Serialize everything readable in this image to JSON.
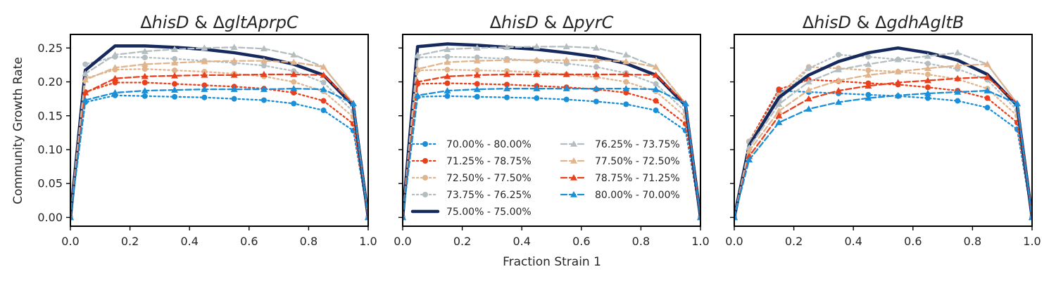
{
  "figure": {
    "ylabel": "Community Growth Rate",
    "xlabel": "Fraction Strain 1"
  },
  "chart_data": [
    {
      "type": "line",
      "title": "ΔhisD & ΔgltAprpC",
      "title_parts": [
        {
          "text": "Δ",
          "italic": false
        },
        {
          "text": "hisD",
          "italic": true
        },
        {
          "text": " & Δ",
          "italic": false
        },
        {
          "text": "gltAprpC",
          "italic": true
        }
      ],
      "xlim": [
        0,
        1
      ],
      "ylim": [
        -0.013,
        0.27
      ],
      "x": [
        0,
        0.05,
        0.15,
        0.25,
        0.35,
        0.45,
        0.55,
        0.65,
        0.75,
        0.85,
        0.95,
        1.0
      ],
      "series": [
        {
          "name": "70.00% - 80.00%",
          "color": "#1a8fd8",
          "dash": "dot",
          "marker": "circle",
          "values": [
            0,
            0.17,
            0.18,
            0.179,
            0.178,
            0.177,
            0.175,
            0.173,
            0.168,
            0.158,
            0.128,
            0
          ]
        },
        {
          "name": "71.25% - 78.75%",
          "color": "#e8401c",
          "dash": "dot",
          "marker": "circle",
          "values": [
            0,
            0.185,
            0.199,
            0.199,
            0.197,
            0.195,
            0.193,
            0.19,
            0.184,
            0.172,
            0.138,
            0
          ]
        },
        {
          "name": "72.50% - 77.50%",
          "color": "#e0b48c",
          "dash": "dot",
          "marker": "circle",
          "values": [
            0,
            0.205,
            0.218,
            0.219,
            0.217,
            0.215,
            0.212,
            0.208,
            0.2,
            0.186,
            0.148,
            0
          ]
        },
        {
          "name": "73.75% - 76.25%",
          "color": "#b4bec1",
          "dash": "dot",
          "marker": "circle",
          "values": [
            0,
            0.226,
            0.237,
            0.236,
            0.234,
            0.231,
            0.228,
            0.224,
            0.216,
            0.199,
            0.156,
            0
          ]
        },
        {
          "name": "75.00% - 75.00%",
          "color": "#16295c",
          "dash": "solid",
          "marker": "none",
          "width": 4.5,
          "values": [
            0,
            0.217,
            0.253,
            0.253,
            0.251,
            0.248,
            0.243,
            0.236,
            0.226,
            0.21,
            0.165,
            0
          ]
        },
        {
          "name": "76.25% - 73.75%",
          "color": "#b4bec1",
          "dash": "dash",
          "marker": "triangle",
          "values": [
            0,
            0.212,
            0.24,
            0.245,
            0.248,
            0.25,
            0.251,
            0.249,
            0.24,
            0.222,
            0.168,
            0
          ]
        },
        {
          "name": "77.50% - 72.50%",
          "color": "#e0b48c",
          "dash": "dash",
          "marker": "triangle",
          "values": [
            0,
            0.203,
            0.221,
            0.226,
            0.228,
            0.23,
            0.231,
            0.231,
            0.229,
            0.222,
            0.168,
            0
          ]
        },
        {
          "name": "78.75% - 71.25%",
          "color": "#e8401c",
          "dash": "dash",
          "marker": "triangle",
          "values": [
            0,
            0.184,
            0.205,
            0.208,
            0.209,
            0.21,
            0.21,
            0.211,
            0.211,
            0.21,
            0.168,
            0
          ]
        },
        {
          "name": "80.00% - 70.00%",
          "color": "#1a8fd8",
          "dash": "dash",
          "marker": "triangle",
          "values": [
            0,
            0.173,
            0.184,
            0.187,
            0.188,
            0.189,
            0.189,
            0.189,
            0.19,
            0.189,
            0.168,
            0
          ]
        }
      ]
    },
    {
      "type": "line",
      "title": "ΔhisD & ΔpyrC",
      "title_parts": [
        {
          "text": "Δ",
          "italic": false
        },
        {
          "text": "hisD",
          "italic": true
        },
        {
          "text": " & Δ",
          "italic": false
        },
        {
          "text": "pyrC",
          "italic": true
        }
      ],
      "xlim": [
        0,
        1
      ],
      "ylim": [
        -0.013,
        0.27
      ],
      "x": [
        0,
        0.05,
        0.15,
        0.25,
        0.35,
        0.45,
        0.55,
        0.65,
        0.75,
        0.85,
        0.95,
        1.0
      ],
      "series": [
        {
          "name": "70.00% - 80.00%",
          "color": "#1a8fd8",
          "dash": "dot",
          "marker": "circle",
          "values": [
            0,
            0.178,
            0.179,
            0.178,
            0.177,
            0.176,
            0.174,
            0.171,
            0.167,
            0.158,
            0.128,
            0
          ]
        },
        {
          "name": "71.25% - 78.75%",
          "color": "#e8401c",
          "dash": "dot",
          "marker": "circle",
          "values": [
            0,
            0.197,
            0.198,
            0.197,
            0.196,
            0.194,
            0.192,
            0.189,
            0.184,
            0.172,
            0.138,
            0
          ]
        },
        {
          "name": "72.50% - 77.50%",
          "color": "#e0b48c",
          "dash": "dot",
          "marker": "circle",
          "values": [
            0,
            0.217,
            0.218,
            0.217,
            0.216,
            0.214,
            0.211,
            0.207,
            0.2,
            0.186,
            0.148,
            0
          ]
        },
        {
          "name": "73.75% - 76.25%",
          "color": "#b4bec1",
          "dash": "dot",
          "marker": "circle",
          "values": [
            0,
            0.236,
            0.237,
            0.236,
            0.234,
            0.231,
            0.227,
            0.222,
            0.213,
            0.197,
            0.156,
            0
          ]
        },
        {
          "name": "75.00% - 75.00%",
          "color": "#16295c",
          "dash": "solid",
          "marker": "none",
          "width": 4.5,
          "values": [
            0,
            0.252,
            0.256,
            0.254,
            0.251,
            0.248,
            0.243,
            0.237,
            0.227,
            0.21,
            0.165,
            0
          ]
        },
        {
          "name": "76.25% - 73.75%",
          "color": "#b4bec1",
          "dash": "dash",
          "marker": "triangle",
          "values": [
            0,
            0.239,
            0.248,
            0.25,
            0.251,
            0.252,
            0.252,
            0.25,
            0.24,
            0.222,
            0.168,
            0
          ]
        },
        {
          "name": "77.50% - 72.50%",
          "color": "#e0b48c",
          "dash": "dash",
          "marker": "triangle",
          "values": [
            0,
            0.219,
            0.229,
            0.231,
            0.232,
            0.232,
            0.232,
            0.232,
            0.23,
            0.222,
            0.168,
            0
          ]
        },
        {
          "name": "78.75% - 71.25%",
          "color": "#e8401c",
          "dash": "dash",
          "marker": "triangle",
          "values": [
            0,
            0.2,
            0.208,
            0.21,
            0.211,
            0.211,
            0.211,
            0.211,
            0.211,
            0.21,
            0.168,
            0
          ]
        },
        {
          "name": "80.00% - 70.00%",
          "color": "#1a8fd8",
          "dash": "dash",
          "marker": "triangle",
          "values": [
            0,
            0.18,
            0.187,
            0.189,
            0.19,
            0.19,
            0.19,
            0.19,
            0.19,
            0.189,
            0.168,
            0
          ]
        }
      ]
    },
    {
      "type": "line",
      "title": "ΔhisD & ΔgdhAgltB",
      "title_parts": [
        {
          "text": "Δ",
          "italic": false
        },
        {
          "text": "hisD",
          "italic": true
        },
        {
          "text": " & Δ",
          "italic": false
        },
        {
          "text": "gdhAgltB",
          "italic": true
        }
      ],
      "xlim": [
        0,
        1
      ],
      "ylim": [
        -0.013,
        0.27
      ],
      "x": [
        0,
        0.05,
        0.15,
        0.25,
        0.35,
        0.45,
        0.55,
        0.65,
        0.75,
        0.85,
        0.95,
        1.0
      ],
      "series": [
        {
          "name": "70.00% - 80.00%",
          "color": "#1a8fd8",
          "dash": "dot",
          "marker": "circle",
          "values": [
            0,
            0.112,
            0.187,
            0.185,
            0.183,
            0.181,
            0.179,
            0.176,
            0.172,
            0.162,
            0.13,
            0
          ]
        },
        {
          "name": "71.25% - 78.75%",
          "color": "#e8401c",
          "dash": "dot",
          "marker": "circle",
          "values": [
            0,
            0.112,
            0.189,
            0.203,
            0.201,
            0.198,
            0.196,
            0.192,
            0.187,
            0.176,
            0.14,
            0
          ]
        },
        {
          "name": "72.50% - 77.50%",
          "color": "#e0b48c",
          "dash": "dot",
          "marker": "circle",
          "values": [
            0,
            0.112,
            0.18,
            0.222,
            0.22,
            0.217,
            0.215,
            0.211,
            0.204,
            0.19,
            0.15,
            0
          ]
        },
        {
          "name": "73.75% - 76.25%",
          "color": "#b4bec1",
          "dash": "dot",
          "marker": "circle",
          "values": [
            0,
            0.111,
            0.172,
            0.22,
            0.24,
            0.237,
            0.233,
            0.227,
            0.219,
            0.203,
            0.158,
            0
          ]
        },
        {
          "name": "75.00% - 75.00%",
          "color": "#16295c",
          "dash": "solid",
          "marker": "none",
          "width": 4.5,
          "values": [
            0,
            0.106,
            0.177,
            0.21,
            0.23,
            0.243,
            0.25,
            0.243,
            0.232,
            0.211,
            0.165,
            0
          ]
        },
        {
          "name": "76.25% - 73.75%",
          "color": "#b4bec1",
          "dash": "dash",
          "marker": "triangle",
          "values": [
            0,
            0.103,
            0.167,
            0.2,
            0.218,
            0.226,
            0.233,
            0.238,
            0.243,
            0.226,
            0.168,
            0
          ]
        },
        {
          "name": "77.50% - 72.50%",
          "color": "#e0b48c",
          "dash": "dash",
          "marker": "triangle",
          "values": [
            0,
            0.098,
            0.157,
            0.188,
            0.202,
            0.21,
            0.215,
            0.22,
            0.224,
            0.226,
            0.168,
            0
          ]
        },
        {
          "name": "78.75% - 71.25%",
          "color": "#e8401c",
          "dash": "dash",
          "marker": "triangle",
          "values": [
            0,
            0.09,
            0.15,
            0.175,
            0.187,
            0.194,
            0.199,
            0.202,
            0.205,
            0.207,
            0.168,
            0
          ]
        },
        {
          "name": "80.00% - 70.00%",
          "color": "#1a8fd8",
          "dash": "dash",
          "marker": "triangle",
          "values": [
            0,
            0.085,
            0.14,
            0.16,
            0.17,
            0.176,
            0.18,
            0.183,
            0.185,
            0.187,
            0.168,
            0
          ]
        }
      ]
    }
  ],
  "legend": {
    "panel": 1,
    "columns": 2,
    "items": [
      "70.00% - 80.00%",
      "71.25% - 78.75%",
      "72.50% - 77.50%",
      "73.75% - 76.25%",
      "75.00% - 75.00%",
      "76.25% - 73.75%",
      "77.50% - 72.50%",
      "78.75% - 71.25%",
      "80.00% - 70.00%"
    ]
  },
  "y_ticks": [
    0.0,
    0.05,
    0.1,
    0.15,
    0.2,
    0.25
  ],
  "y_tick_labels": [
    "0.00",
    "0.05",
    "0.10",
    "0.15",
    "0.20",
    "0.25"
  ],
  "x_ticks": [
    0.0,
    0.2,
    0.4,
    0.6,
    0.8,
    1.0
  ],
  "x_tick_labels": [
    "0.0",
    "0.2",
    "0.4",
    "0.6",
    "0.8",
    "1.0"
  ]
}
